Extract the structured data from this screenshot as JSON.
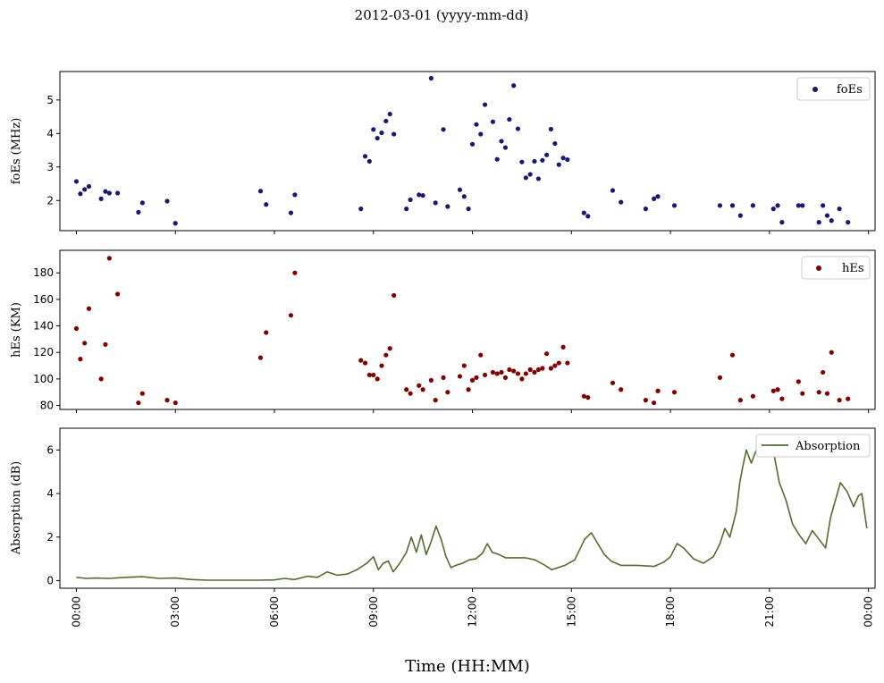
{
  "title": "2012-03-01 (yyyy-mm-dd)",
  "xlabel": "Time (HH:MM)",
  "colors": {
    "foEs": "#191970",
    "hEs": "#800000",
    "absorption": "#556b2f",
    "axes": "#000000"
  },
  "chart_data": [
    {
      "type": "scatter",
      "ylabel": "foEs (MHz)",
      "legend": "foEs",
      "legend_loc": "top-right",
      "x_unit": "hours since 00:00",
      "xlim": [
        -0.5,
        24.2
      ],
      "ylim": [
        1.1,
        5.85
      ],
      "yticks": [
        2,
        3,
        4,
        5
      ],
      "points": [
        [
          0.0,
          2.57
        ],
        [
          0.12,
          2.2
        ],
        [
          0.25,
          2.33
        ],
        [
          0.38,
          2.42
        ],
        [
          0.75,
          2.05
        ],
        [
          0.88,
          2.27
        ],
        [
          1.0,
          2.22
        ],
        [
          1.25,
          2.22
        ],
        [
          1.88,
          1.65
        ],
        [
          2.0,
          1.93
        ],
        [
          2.75,
          1.98
        ],
        [
          3.0,
          1.32
        ],
        [
          5.58,
          2.28
        ],
        [
          5.75,
          1.88
        ],
        [
          6.5,
          1.63
        ],
        [
          6.62,
          2.17
        ],
        [
          8.62,
          1.75
        ],
        [
          8.75,
          3.32
        ],
        [
          8.88,
          3.17
        ],
        [
          9.0,
          4.12
        ],
        [
          9.12,
          3.86
        ],
        [
          9.25,
          4.02
        ],
        [
          9.38,
          4.37
        ],
        [
          9.5,
          4.58
        ],
        [
          9.62,
          3.98
        ],
        [
          10.0,
          1.75
        ],
        [
          10.12,
          2.02
        ],
        [
          10.38,
          2.17
        ],
        [
          10.5,
          2.15
        ],
        [
          10.75,
          5.65
        ],
        [
          10.88,
          1.93
        ],
        [
          11.12,
          4.12
        ],
        [
          11.25,
          1.82
        ],
        [
          11.62,
          2.32
        ],
        [
          11.75,
          2.12
        ],
        [
          11.88,
          1.75
        ],
        [
          12.0,
          3.68
        ],
        [
          12.12,
          4.27
        ],
        [
          12.25,
          3.98
        ],
        [
          12.38,
          4.86
        ],
        [
          12.62,
          4.35
        ],
        [
          12.75,
          3.23
        ],
        [
          12.88,
          3.77
        ],
        [
          13.0,
          3.58
        ],
        [
          13.12,
          4.42
        ],
        [
          13.25,
          5.43
        ],
        [
          13.38,
          4.14
        ],
        [
          13.5,
          3.15
        ],
        [
          13.62,
          2.68
        ],
        [
          13.75,
          2.78
        ],
        [
          13.88,
          3.17
        ],
        [
          14.0,
          2.65
        ],
        [
          14.12,
          3.2
        ],
        [
          14.25,
          3.36
        ],
        [
          14.38,
          4.13
        ],
        [
          14.5,
          3.7
        ],
        [
          14.62,
          3.07
        ],
        [
          14.75,
          3.27
        ],
        [
          14.88,
          3.22
        ],
        [
          15.38,
          1.63
        ],
        [
          15.5,
          1.53
        ],
        [
          16.25,
          2.3
        ],
        [
          16.5,
          1.95
        ],
        [
          17.25,
          1.75
        ],
        [
          17.5,
          2.05
        ],
        [
          17.62,
          2.12
        ],
        [
          18.12,
          1.85
        ],
        [
          19.5,
          1.85
        ],
        [
          19.88,
          1.85
        ],
        [
          20.12,
          1.55
        ],
        [
          20.5,
          1.85
        ],
        [
          21.12,
          1.75
        ],
        [
          21.25,
          1.85
        ],
        [
          21.38,
          1.35
        ],
        [
          21.88,
          1.85
        ],
        [
          22.0,
          1.85
        ],
        [
          22.5,
          1.35
        ],
        [
          22.62,
          1.85
        ],
        [
          22.75,
          1.55
        ],
        [
          22.88,
          1.4
        ],
        [
          23.12,
          1.75
        ],
        [
          23.38,
          1.35
        ]
      ]
    },
    {
      "type": "scatter",
      "ylabel": "hEs (KM)",
      "legend": "hEs",
      "legend_loc": "top-right",
      "x_unit": "hours since 00:00",
      "xlim": [
        -0.5,
        24.2
      ],
      "ylim": [
        77,
        197
      ],
      "yticks": [
        80,
        100,
        120,
        140,
        160,
        180
      ],
      "points": [
        [
          0.0,
          138
        ],
        [
          0.12,
          115
        ],
        [
          0.25,
          127
        ],
        [
          0.38,
          153
        ],
        [
          0.75,
          100
        ],
        [
          0.88,
          126
        ],
        [
          1.0,
          191
        ],
        [
          1.25,
          164
        ],
        [
          1.88,
          82
        ],
        [
          2.0,
          89
        ],
        [
          2.75,
          84
        ],
        [
          3.0,
          82
        ],
        [
          5.58,
          116
        ],
        [
          5.75,
          135
        ],
        [
          6.5,
          148
        ],
        [
          6.62,
          180
        ],
        [
          8.62,
          114
        ],
        [
          8.75,
          112
        ],
        [
          8.88,
          103
        ],
        [
          9.0,
          103
        ],
        [
          9.12,
          100
        ],
        [
          9.25,
          110
        ],
        [
          9.38,
          118
        ],
        [
          9.5,
          123
        ],
        [
          9.62,
          163
        ],
        [
          10.0,
          92
        ],
        [
          10.12,
          89
        ],
        [
          10.38,
          95
        ],
        [
          10.5,
          92
        ],
        [
          10.75,
          99
        ],
        [
          10.88,
          84
        ],
        [
          11.12,
          101
        ],
        [
          11.25,
          90
        ],
        [
          11.62,
          102
        ],
        [
          11.75,
          110
        ],
        [
          11.88,
          92
        ],
        [
          12.0,
          99
        ],
        [
          12.12,
          101
        ],
        [
          12.25,
          118
        ],
        [
          12.38,
          103
        ],
        [
          12.62,
          105
        ],
        [
          12.75,
          104
        ],
        [
          12.88,
          105
        ],
        [
          13.0,
          101
        ],
        [
          13.12,
          107
        ],
        [
          13.25,
          106
        ],
        [
          13.38,
          104
        ],
        [
          13.5,
          100
        ],
        [
          13.62,
          104
        ],
        [
          13.75,
          107
        ],
        [
          13.88,
          105
        ],
        [
          14.0,
          107
        ],
        [
          14.12,
          108
        ],
        [
          14.25,
          119
        ],
        [
          14.38,
          108
        ],
        [
          14.5,
          110
        ],
        [
          14.62,
          112
        ],
        [
          14.75,
          124
        ],
        [
          14.88,
          112
        ],
        [
          15.38,
          87
        ],
        [
          15.5,
          86
        ],
        [
          16.25,
          97
        ],
        [
          16.5,
          92
        ],
        [
          17.25,
          84
        ],
        [
          17.5,
          82
        ],
        [
          17.62,
          91
        ],
        [
          18.12,
          90
        ],
        [
          19.5,
          101
        ],
        [
          19.88,
          118
        ],
        [
          20.12,
          84
        ],
        [
          20.5,
          87
        ],
        [
          21.12,
          91
        ],
        [
          21.25,
          92
        ],
        [
          21.38,
          85
        ],
        [
          21.88,
          98
        ],
        [
          22.0,
          89
        ],
        [
          22.5,
          90
        ],
        [
          22.62,
          105
        ],
        [
          22.75,
          89
        ],
        [
          22.88,
          120
        ],
        [
          23.12,
          84
        ],
        [
          23.38,
          85
        ]
      ]
    },
    {
      "type": "line",
      "ylabel": "Absorption (dB)",
      "legend": "Absorption",
      "legend_loc": "top-right",
      "x_unit": "hours since 00:00",
      "xlim": [
        -0.5,
        24.2
      ],
      "ylim": [
        -0.35,
        7.0
      ],
      "yticks": [
        0,
        2,
        4,
        6
      ],
      "xticks": [
        "00:00",
        "03:00",
        "06:00",
        "09:00",
        "12:00",
        "15:00",
        "18:00",
        "21:00",
        "00:00"
      ],
      "points": [
        [
          0.0,
          0.15
        ],
        [
          0.3,
          0.1
        ],
        [
          0.6,
          0.12
        ],
        [
          1.0,
          0.1
        ],
        [
          1.5,
          0.15
        ],
        [
          2.0,
          0.18
        ],
        [
          2.5,
          0.1
        ],
        [
          3.0,
          0.12
        ],
        [
          3.5,
          0.05
        ],
        [
          4.0,
          0.02
        ],
        [
          4.5,
          0.02
        ],
        [
          5.0,
          0.02
        ],
        [
          5.5,
          0.02
        ],
        [
          6.0,
          0.03
        ],
        [
          6.3,
          0.1
        ],
        [
          6.6,
          0.05
        ],
        [
          7.0,
          0.2
        ],
        [
          7.3,
          0.15
        ],
        [
          7.6,
          0.4
        ],
        [
          7.9,
          0.25
        ],
        [
          8.2,
          0.3
        ],
        [
          8.5,
          0.5
        ],
        [
          8.8,
          0.8
        ],
        [
          9.0,
          1.1
        ],
        [
          9.15,
          0.5
        ],
        [
          9.3,
          0.8
        ],
        [
          9.45,
          0.9
        ],
        [
          9.6,
          0.4
        ],
        [
          9.8,
          0.8
        ],
        [
          10.0,
          1.3
        ],
        [
          10.15,
          2.0
        ],
        [
          10.3,
          1.3
        ],
        [
          10.45,
          2.1
        ],
        [
          10.6,
          1.2
        ],
        [
          10.75,
          1.8
        ],
        [
          10.9,
          2.5
        ],
        [
          11.05,
          1.9
        ],
        [
          11.2,
          1.1
        ],
        [
          11.35,
          0.6
        ],
        [
          11.5,
          0.7
        ],
        [
          11.7,
          0.8
        ],
        [
          11.9,
          0.95
        ],
        [
          12.1,
          1.0
        ],
        [
          12.3,
          1.25
        ],
        [
          12.45,
          1.7
        ],
        [
          12.6,
          1.3
        ],
        [
          12.8,
          1.2
        ],
        [
          13.0,
          1.05
        ],
        [
          13.3,
          1.05
        ],
        [
          13.6,
          1.05
        ],
        [
          13.9,
          0.95
        ],
        [
          14.2,
          0.7
        ],
        [
          14.4,
          0.5
        ],
        [
          14.6,
          0.6
        ],
        [
          14.8,
          0.7
        ],
        [
          15.1,
          0.95
        ],
        [
          15.4,
          1.9
        ],
        [
          15.6,
          2.2
        ],
        [
          15.8,
          1.7
        ],
        [
          16.0,
          1.2
        ],
        [
          16.2,
          0.9
        ],
        [
          16.5,
          0.7
        ],
        [
          17.0,
          0.7
        ],
        [
          17.5,
          0.65
        ],
        [
          17.8,
          0.85
        ],
        [
          18.0,
          1.1
        ],
        [
          18.2,
          1.7
        ],
        [
          18.4,
          1.5
        ],
        [
          18.7,
          1.0
        ],
        [
          19.0,
          0.8
        ],
        [
          19.3,
          1.1
        ],
        [
          19.5,
          1.7
        ],
        [
          19.65,
          2.4
        ],
        [
          19.8,
          2.0
        ],
        [
          20.0,
          3.2
        ],
        [
          20.1,
          4.5
        ],
        [
          20.2,
          5.3
        ],
        [
          20.3,
          6.0
        ],
        [
          20.45,
          5.4
        ],
        [
          20.6,
          6.0
        ],
        [
          20.75,
          5.7
        ],
        [
          20.85,
          6.7
        ],
        [
          21.0,
          6.3
        ],
        [
          21.15,
          5.7
        ],
        [
          21.3,
          4.5
        ],
        [
          21.5,
          3.7
        ],
        [
          21.7,
          2.6
        ],
        [
          21.9,
          2.1
        ],
        [
          22.1,
          1.7
        ],
        [
          22.3,
          2.3
        ],
        [
          22.5,
          1.9
        ],
        [
          22.7,
          1.5
        ],
        [
          22.85,
          2.9
        ],
        [
          23.0,
          3.7
        ],
        [
          23.15,
          4.5
        ],
        [
          23.35,
          4.1
        ],
        [
          23.55,
          3.4
        ],
        [
          23.7,
          3.9
        ],
        [
          23.8,
          4.0
        ],
        [
          23.95,
          2.4
        ]
      ]
    }
  ]
}
